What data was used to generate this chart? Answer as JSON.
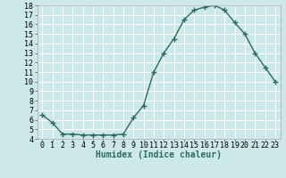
{
  "x": [
    0,
    1,
    2,
    3,
    4,
    5,
    6,
    7,
    8,
    9,
    10,
    11,
    12,
    13,
    14,
    15,
    16,
    17,
    18,
    19,
    20,
    21,
    22,
    23
  ],
  "y": [
    6.5,
    5.7,
    4.5,
    4.5,
    4.4,
    4.4,
    4.4,
    4.4,
    4.5,
    6.2,
    7.5,
    11.0,
    13.0,
    14.5,
    16.5,
    17.5,
    17.8,
    18.0,
    17.5,
    16.2,
    15.0,
    13.0,
    11.5,
    10.0
  ],
  "line_color": "#2e6b5e",
  "marker": "+",
  "marker_size": 4,
  "line_width": 1.0,
  "xlabel": "Humidex (Indice chaleur)",
  "xlim": [
    -0.5,
    23.5
  ],
  "ylim": [
    4,
    18
  ],
  "yticks": [
    4,
    5,
    6,
    7,
    8,
    9,
    10,
    11,
    12,
    13,
    14,
    15,
    16,
    17,
    18
  ],
  "xticks": [
    0,
    1,
    2,
    3,
    4,
    5,
    6,
    7,
    8,
    9,
    10,
    11,
    12,
    13,
    14,
    15,
    16,
    17,
    18,
    19,
    20,
    21,
    22,
    23
  ],
  "background_color": "#cde8e8",
  "grid_color": "#ffffff",
  "xlabel_fontsize": 7,
  "tick_fontsize": 6,
  "marker_edge_width": 1.0
}
